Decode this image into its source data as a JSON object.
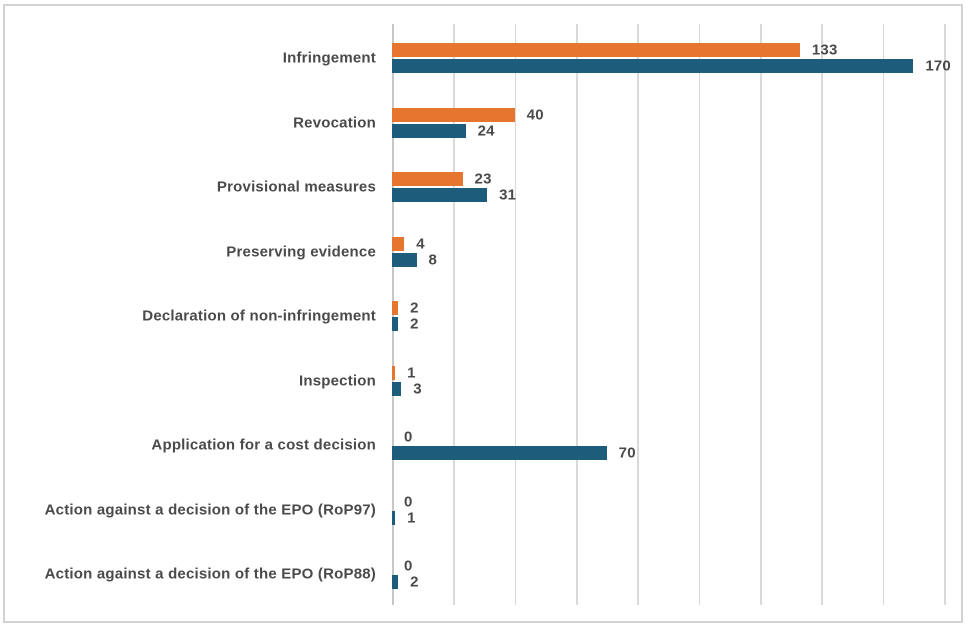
{
  "figure": {
    "background": "#FFFFFF",
    "border_color": "#D2D2D2"
  },
  "chart_data": {
    "type": "bar",
    "orientation": "horizontal",
    "title": "",
    "categories": [
      "Infringement",
      "Revocation",
      "Provisional measures",
      "Preserving evidence",
      "Declaration of non-infringement",
      "Inspection",
      "Application for a cost decision",
      "Action against a decision of the EPO (RoP97)",
      "Action against a decision of the EPO (RoP88)"
    ],
    "series": [
      {
        "name": "orange",
        "color": "#E6762F",
        "values": [
          133,
          40,
          23,
          4,
          2,
          1,
          0,
          0,
          0
        ]
      },
      {
        "name": "blue",
        "color": "#1E5C7B",
        "values": [
          170,
          24,
          31,
          8,
          2,
          3,
          70,
          1,
          2
        ]
      }
    ],
    "xlim": [
      0,
      180
    ],
    "gridline_step": 20,
    "grid": "vertical",
    "axis_tick_labels": "none",
    "legend_position": "none",
    "data_labels": true,
    "label_color": "#4A4A4A",
    "gridline_color": "#D9D9D9",
    "axis_line_color": "#C7C7C7"
  }
}
